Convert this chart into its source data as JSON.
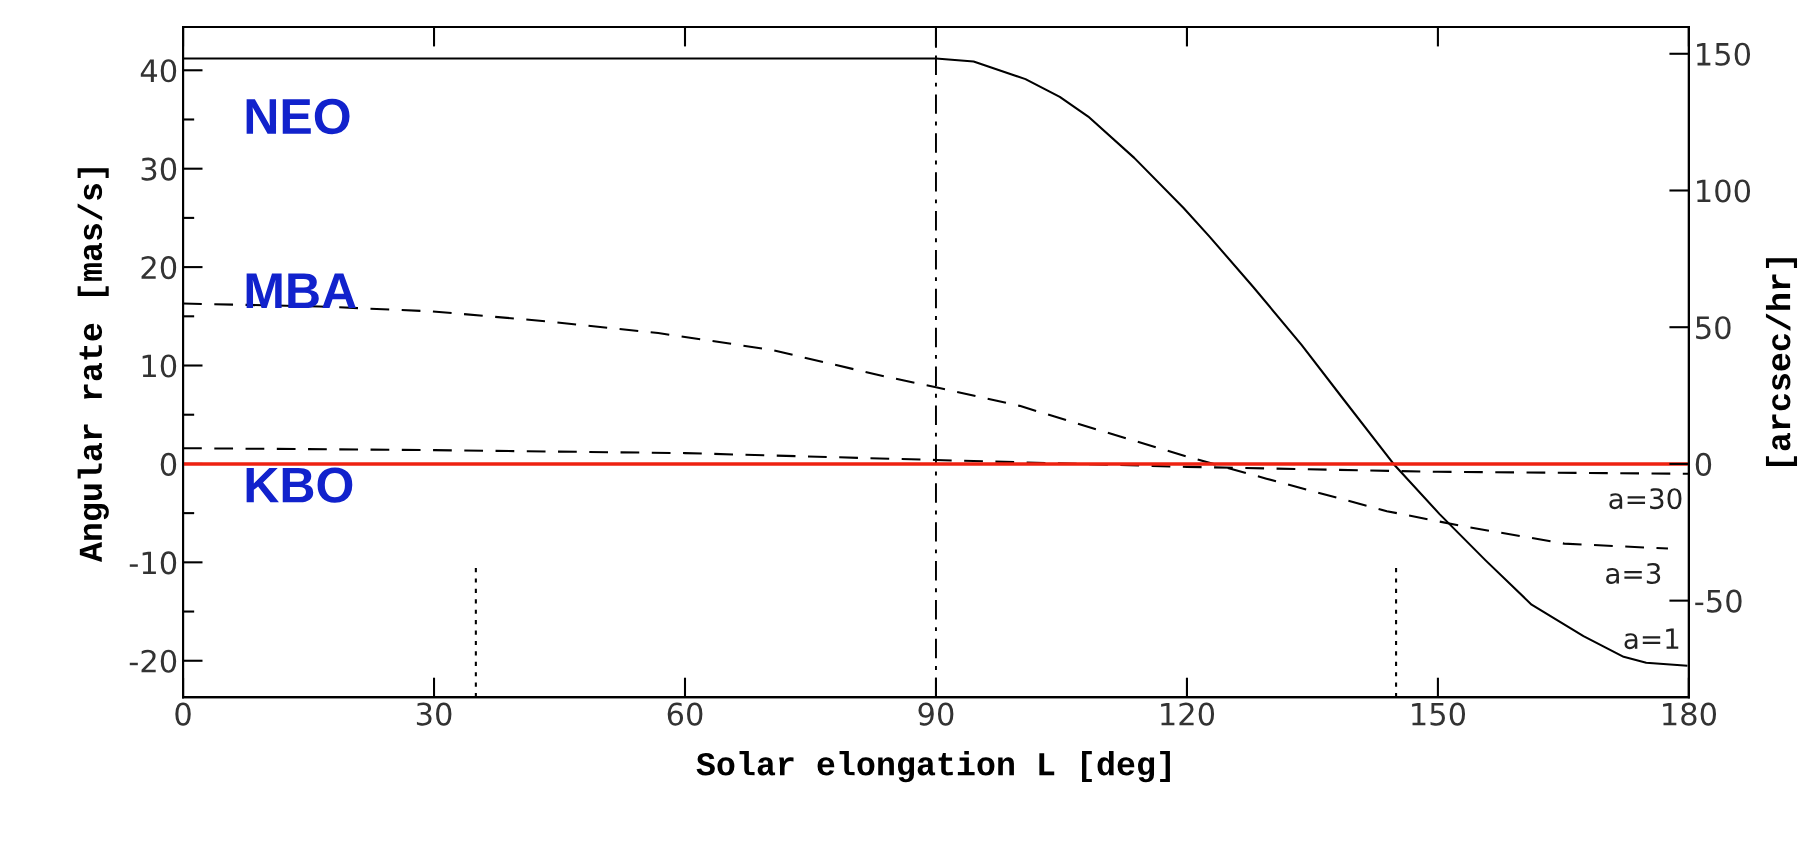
{
  "chart_data": {
    "type": "line",
    "xlabel": "Solar elongation L [deg]",
    "ylabel": "Angular rate [mas/s]",
    "y2label": "[arcsec/hr]",
    "xlim": [
      0,
      180
    ],
    "xticks": [
      0,
      30,
      60,
      90,
      120,
      150,
      180
    ],
    "ylim": [
      -23.7,
      44.4
    ],
    "yticks": [
      -20,
      -10,
      0,
      10,
      20,
      30,
      40
    ],
    "y2lim": [
      -85.3,
      159.8
    ],
    "y2ticks": [
      -50,
      0,
      50,
      100,
      150
    ],
    "series": [
      {
        "color": "#000000",
        "line_style": "solid",
        "x": [
          0,
          90,
          94.5,
          100.7,
          104.8,
          108.2,
          113.7,
          119.6,
          122.7,
          127.9,
          133.7,
          138.5,
          144.7,
          150.2,
          155.7,
          161.2,
          167.4,
          172.2,
          174.9,
          179.7
        ],
        "values": [
          41.2,
          41.2,
          40.9,
          39.1,
          37.3,
          35.3,
          31.1,
          26.0,
          23.1,
          18.0,
          12.1,
          6.8,
          0,
          -5.1,
          -9.8,
          -14.3,
          -17.5,
          -19.6,
          -20.2,
          -20.5
        ]
      },
      {
        "color": "#000000",
        "line_style": "dashed",
        "x": [
          0,
          16.3,
          29.8,
          43.3,
          56.8,
          70.3,
          83.8,
          90,
          100,
          110.4,
          120.6,
          129.5,
          143.9,
          152.8,
          165.1,
          177.5
        ],
        "values": [
          16.3,
          16.0,
          15.5,
          14.5,
          13.3,
          11.6,
          8.9,
          7.8,
          5.9,
          3.2,
          0.6,
          -1.5,
          -4.8,
          -6.3,
          -8.1,
          -8.6
        ]
      },
      {
        "color": "#000000",
        "line_style": "dashed",
        "x": [
          0,
          30,
          60,
          90,
          120,
          150,
          180
        ],
        "values": [
          1.6,
          1.4,
          1.1,
          0.4,
          -0.3,
          -0.8,
          -1.0
        ]
      },
      {
        "color": "#000000",
        "line_style": "dotted",
        "x": [
          35,
          35
        ],
        "values": [
          -23.7,
          -10.3
        ]
      },
      {
        "color": "#000000",
        "line_style": "dotted",
        "x": [
          145,
          145
        ],
        "values": [
          -23.7,
          -10.3
        ]
      }
    ],
    "ref_lines": [
      {
        "axis": "x",
        "value": 90,
        "label": null,
        "color": "#000000",
        "line_style": "dashdot"
      },
      {
        "axis": "y",
        "value": 0,
        "label": null,
        "color": "#ee2211",
        "line_style": "solid"
      }
    ],
    "annotations": [
      "NEO",
      "MBA",
      "KBO",
      {
        "text": "a=30",
        "x": 180,
        "y": -1.0
      },
      {
        "text": "a=3",
        "x": 177.5,
        "y": -8.6
      },
      {
        "text": "a=1",
        "x": 179.7,
        "y": -20.5
      }
    ],
    "marker": "none",
    "grid": false,
    "legend": false
  }
}
